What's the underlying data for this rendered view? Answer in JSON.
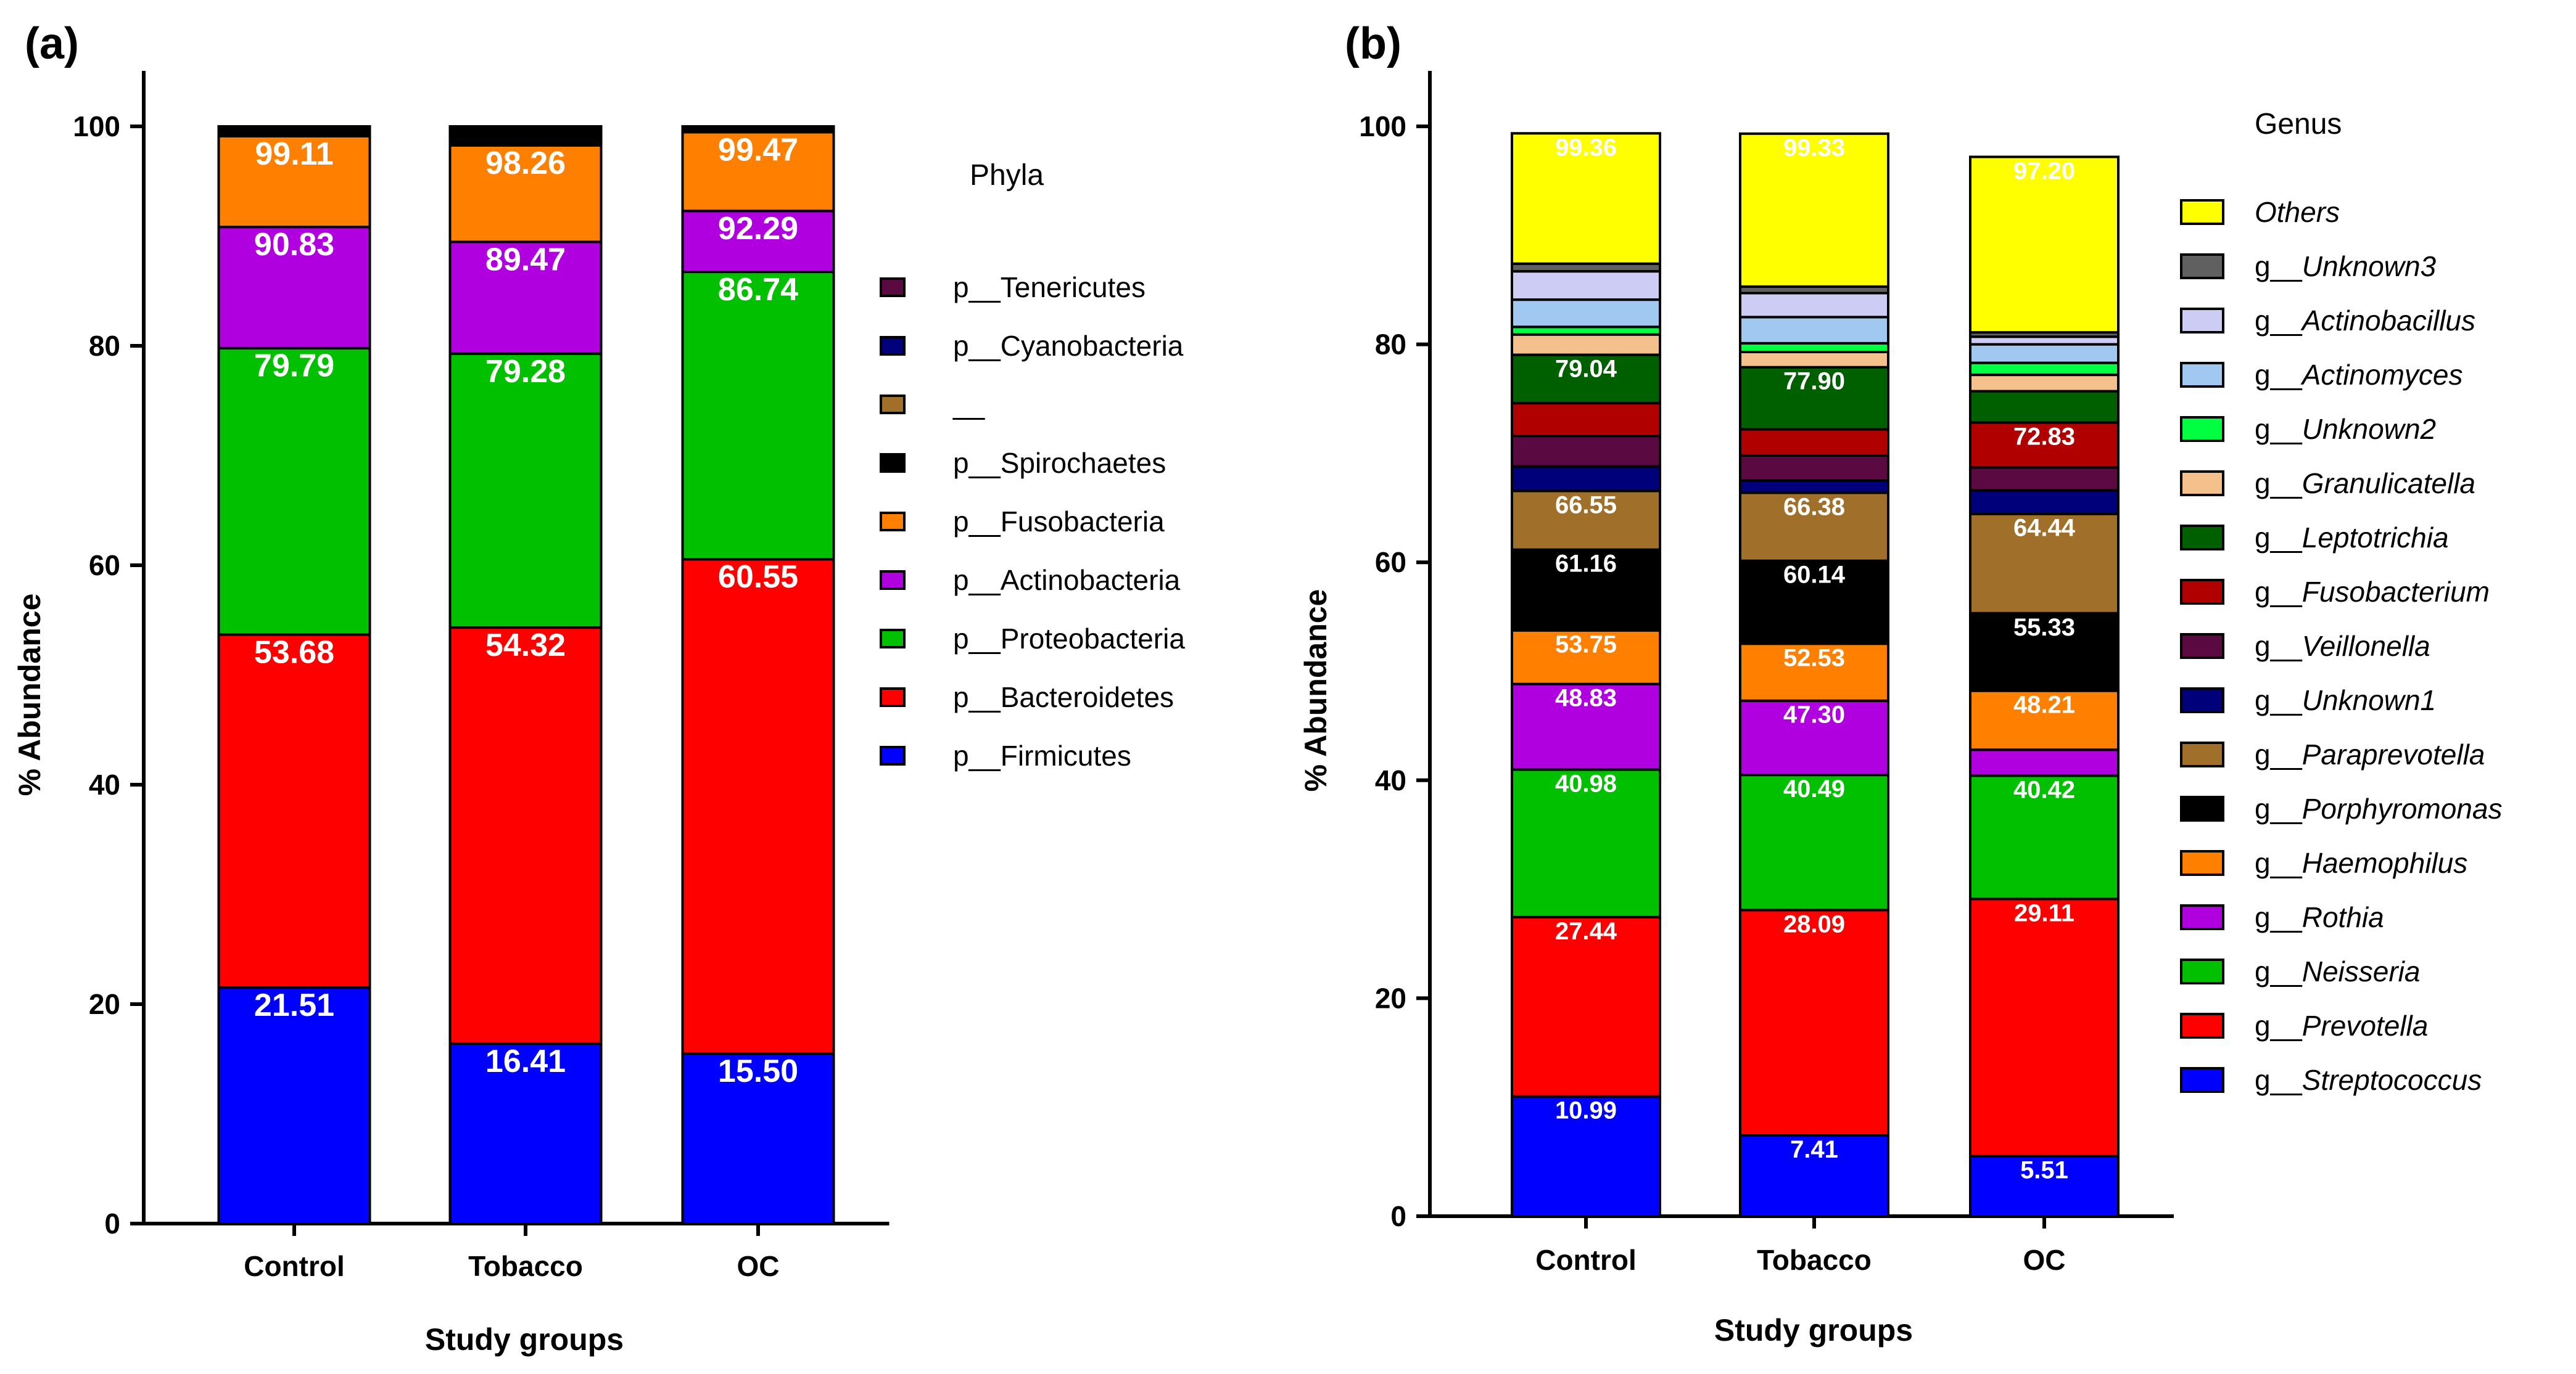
{
  "panels": [
    {
      "label": "(a)",
      "legend_title": "Phyla",
      "xlabel": "Study groups",
      "ylabel": "% Abundance",
      "ylim": [
        0,
        100
      ],
      "yticks": [
        "0",
        "20",
        "40",
        "60",
        "80",
        "100"
      ],
      "categories": [
        "Control",
        "Tobacco",
        "OC"
      ],
      "series_order_top_down": [
        "p__Tenericutes",
        "p__Cyanobacteria",
        "__",
        "p__Spirochaetes",
        "p__Fusobacteria",
        "p__Actinobacteria",
        "p__Proteobacteria",
        "p__Bacteroidetes",
        "p__Firmicutes"
      ]
    },
    {
      "label": "(b)",
      "legend_title": "Genus",
      "xlabel": "Study groups",
      "ylabel": "% Abundance",
      "ylim": [
        0,
        100
      ],
      "yticks": [
        "0",
        "20",
        "40",
        "60",
        "80",
        "100"
      ],
      "categories": [
        "Control",
        "Tobacco",
        "OC"
      ]
    }
  ],
  "chart_data": [
    {
      "type": "bar",
      "stacked": true,
      "title": "(a)",
      "xlabel": "Study groups",
      "ylabel": "% Abundance",
      "ylim": [
        0,
        100
      ],
      "legend_title": "Phyla",
      "categories": [
        "Control",
        "Tobacco",
        "OC"
      ],
      "series": [
        {
          "name": "p__Firmicutes",
          "color": "#0000ff",
          "cumulative": [
            21.51,
            16.41,
            15.5
          ],
          "labels": [
            "21.51",
            "16.41",
            "15.50"
          ]
        },
        {
          "name": "p__Bacteroidetes",
          "color": "#ff0000",
          "cumulative": [
            53.68,
            54.32,
            60.55
          ],
          "labels": [
            "53.68",
            "54.32",
            "60.55"
          ]
        },
        {
          "name": "p__Proteobacteria",
          "color": "#00c000",
          "cumulative": [
            79.79,
            79.28,
            86.74
          ],
          "labels": [
            "79.79",
            "79.28",
            "86.74"
          ]
        },
        {
          "name": "p__Actinobacteria",
          "color": "#b000e0",
          "cumulative": [
            90.83,
            89.47,
            92.29
          ],
          "labels": [
            "90.83",
            "89.47",
            "92.29"
          ]
        },
        {
          "name": "p__Fusobacteria",
          "color": "#ff8000",
          "cumulative": [
            99.11,
            98.26,
            99.47
          ],
          "labels": [
            "99.11",
            "98.26",
            "99.47"
          ]
        },
        {
          "name": "p__Spirochaetes",
          "color": "#000000",
          "cumulative": [
            100,
            100,
            100
          ]
        },
        {
          "name": "__",
          "color": "#a0702a",
          "cumulative": [
            100,
            100,
            100
          ]
        },
        {
          "name": "p__Cyanobacteria",
          "color": "#00007a",
          "cumulative": [
            100,
            100,
            100
          ]
        },
        {
          "name": "p__Tenericutes",
          "color": "#5a0a40",
          "cumulative": [
            100,
            100,
            100
          ]
        }
      ]
    },
    {
      "type": "bar",
      "stacked": true,
      "title": "(b)",
      "xlabel": "Study groups",
      "ylabel": "% Abundance",
      "ylim": [
        0,
        100
      ],
      "legend_title": "Genus",
      "categories": [
        "Control",
        "Tobacco",
        "OC"
      ],
      "totals": [
        99.36,
        99.33,
        97.2
      ],
      "series": [
        {
          "name": "g__Streptococcus",
          "color": "#0000ff",
          "cumulative": [
            10.99,
            7.41,
            5.51
          ],
          "labels": [
            "10.99",
            "7.41",
            "5.51"
          ]
        },
        {
          "name": "g__Prevotella",
          "color": "#ff0000",
          "cumulative": [
            27.44,
            28.09,
            29.11
          ],
          "labels": [
            "27.44",
            "28.09",
            "29.11"
          ]
        },
        {
          "name": "g__Neisseria",
          "color": "#00c000",
          "cumulative": [
            40.98,
            40.49,
            40.42
          ],
          "labels": [
            "40.98",
            "40.49",
            "40.42"
          ]
        },
        {
          "name": "g__Rothia",
          "color": "#b000e0",
          "cumulative": [
            48.83,
            47.3,
            42.8
          ],
          "labels": [
            "48.83",
            "47.30",
            ""
          ]
        },
        {
          "name": "g__Haemophilus",
          "color": "#ff8000",
          "cumulative": [
            53.75,
            52.53,
            48.21
          ],
          "labels": [
            "53.75",
            "52.53",
            "48.21"
          ]
        },
        {
          "name": "g__Porphyromonas",
          "color": "#000000",
          "cumulative": [
            61.16,
            60.14,
            55.33
          ],
          "labels": [
            "61.16",
            "60.14",
            "55.33"
          ]
        },
        {
          "name": "g__Paraprevotella",
          "color": "#a0702a",
          "cumulative": [
            66.55,
            66.38,
            64.44
          ],
          "labels": [
            "66.55",
            "66.38",
            "64.44"
          ]
        },
        {
          "name": "g__Unknown1",
          "color": "#00007a",
          "cumulative": [
            68.8,
            67.5,
            66.6
          ]
        },
        {
          "name": "g__Veillonella",
          "color": "#5a0a40",
          "cumulative": [
            71.6,
            69.8,
            68.7
          ]
        },
        {
          "name": "g__Fusobacterium",
          "color": "#b00000",
          "cumulative": [
            74.6,
            72.2,
            72.83
          ],
          "labels": [
            "",
            "",
            "72.83"
          ]
        },
        {
          "name": "g__Leptotrichia",
          "color": "#006000",
          "cumulative": [
            79.04,
            77.9,
            75.7
          ],
          "labels": [
            "79.04",
            "77.90",
            ""
          ]
        },
        {
          "name": "g__Granulicatella",
          "color": "#f4c08c",
          "cumulative": [
            80.9,
            79.3,
            77.2
          ]
        },
        {
          "name": "g__Unknown2",
          "color": "#00ff40",
          "cumulative": [
            81.6,
            80.1,
            78.3
          ]
        },
        {
          "name": "g__Actinomyces",
          "color": "#a0c8f0",
          "cumulative": [
            84.1,
            82.5,
            80.0
          ]
        },
        {
          "name": "g__Actinobacillus",
          "color": "#ccccf4",
          "cumulative": [
            86.7,
            84.7,
            80.7
          ]
        },
        {
          "name": "g__Unknown3",
          "color": "#606060",
          "cumulative": [
            87.4,
            85.3,
            81.1
          ]
        },
        {
          "name": "Others",
          "color": "#ffff00",
          "cumulative": [
            99.36,
            99.33,
            97.2
          ],
          "labels": [
            "99.36",
            "99.33",
            "97.20"
          ]
        }
      ]
    }
  ]
}
